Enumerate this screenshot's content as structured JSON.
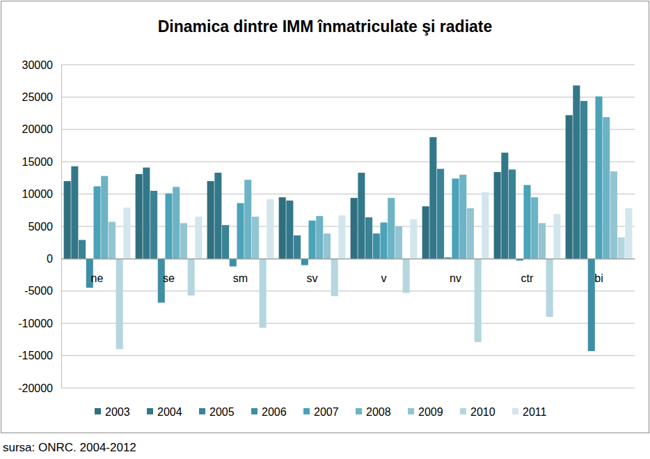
{
  "chart_data": {
    "type": "bar",
    "title": "Dinamica dintre IMM înmatriculate şi radiate",
    "annotations": [
      "sursa: ONRC. 2004-2012"
    ],
    "categories": [
      "ne",
      "se",
      "sm",
      "sv",
      "v",
      "nv",
      "ctr",
      "bi"
    ],
    "series": [
      {
        "name": "2003",
        "color": "#2f6f7f",
        "values": [
          12000,
          13100,
          12000,
          9500,
          9400,
          8100,
          13400,
          22200
        ]
      },
      {
        "name": "2004",
        "color": "#33788a",
        "values": [
          14300,
          14100,
          13300,
          9000,
          13300,
          18800,
          16400,
          26800
        ]
      },
      {
        "name": "2005",
        "color": "#3a8396",
        "values": [
          2900,
          10500,
          5200,
          3600,
          6400,
          13900,
          13800,
          24400
        ]
      },
      {
        "name": "2006",
        "color": "#3f8fa4",
        "values": [
          -4500,
          -6800,
          -1200,
          -1000,
          3900,
          200,
          -300,
          -14300
        ]
      },
      {
        "name": "2007",
        "color": "#4aa3b9",
        "values": [
          11200,
          10100,
          8600,
          5900,
          5600,
          12400,
          11400,
          25100
        ]
      },
      {
        "name": "2008",
        "color": "#6db3c6",
        "values": [
          12800,
          11100,
          12200,
          6600,
          9400,
          13000,
          9500,
          21900
        ]
      },
      {
        "name": "2009",
        "color": "#93c4d2",
        "values": [
          5700,
          5500,
          6500,
          3900,
          5000,
          7800,
          5500,
          13500
        ]
      },
      {
        "name": "2010",
        "color": "#b5d6df",
        "values": [
          -14000,
          -5700,
          -10700,
          -5800,
          -5300,
          -12900,
          -9000,
          3300
        ]
      },
      {
        "name": "2011",
        "color": "#d2e6ec",
        "values": [
          7900,
          6500,
          9200,
          6700,
          6100,
          10300,
          6900,
          7800
        ]
      }
    ],
    "ylim": [
      -20000,
      30000
    ],
    "yticks": [
      -20000,
      -15000,
      -10000,
      -5000,
      0,
      5000,
      10000,
      15000,
      20000,
      25000,
      30000
    ],
    "grid": true,
    "legend": "bottom"
  }
}
